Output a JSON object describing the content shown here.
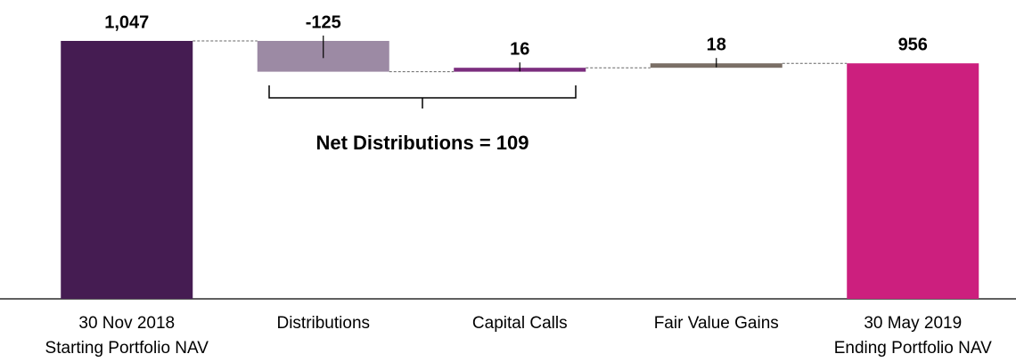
{
  "chart_data": {
    "type": "waterfall",
    "categories": [
      [
        "30 Nov 2018",
        "Starting Portfolio NAV"
      ],
      [
        "Distributions"
      ],
      [
        "Capital Calls"
      ],
      [
        "Fair Value Gains"
      ],
      [
        "30 May 2019",
        "Ending Portfolio NAV"
      ]
    ],
    "measure": [
      "total",
      "relative",
      "relative",
      "relative",
      "total"
    ],
    "values": [
      1047,
      -125,
      16,
      18,
      956
    ],
    "value_labels": [
      "1,047",
      "-125",
      "16",
      "18",
      "956"
    ],
    "colors": [
      "#451c52",
      "#9c8aa4",
      "#7b2d7e",
      "#7a6f66",
      "#cc1f7e"
    ],
    "annotation": "Net Distributions = 109"
  }
}
